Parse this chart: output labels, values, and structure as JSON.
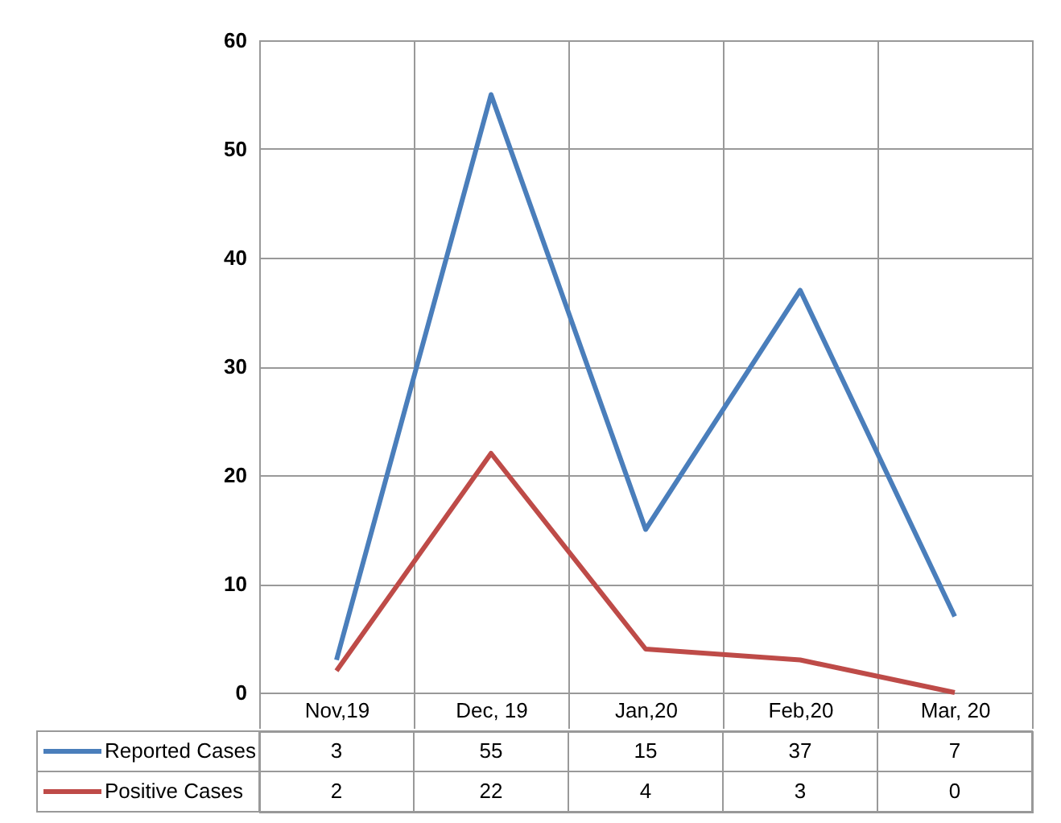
{
  "chart_data": {
    "type": "line",
    "categories": [
      "Nov,19",
      "Dec, 19",
      "Jan,20",
      "Feb,20",
      "Mar, 20"
    ],
    "series": [
      {
        "name": "Reported Cases",
        "color": "#4a7ebb",
        "values": [
          3,
          55,
          15,
          37,
          7
        ]
      },
      {
        "name": "Positive Cases",
        "color": "#be4b48",
        "values": [
          2,
          22,
          4,
          3,
          0
        ]
      }
    ],
    "ylim": [
      0,
      60
    ],
    "yticks": [
      0,
      10,
      20,
      30,
      40,
      50,
      60
    ],
    "grid": true,
    "legend": "bottom",
    "data_labels": true
  }
}
